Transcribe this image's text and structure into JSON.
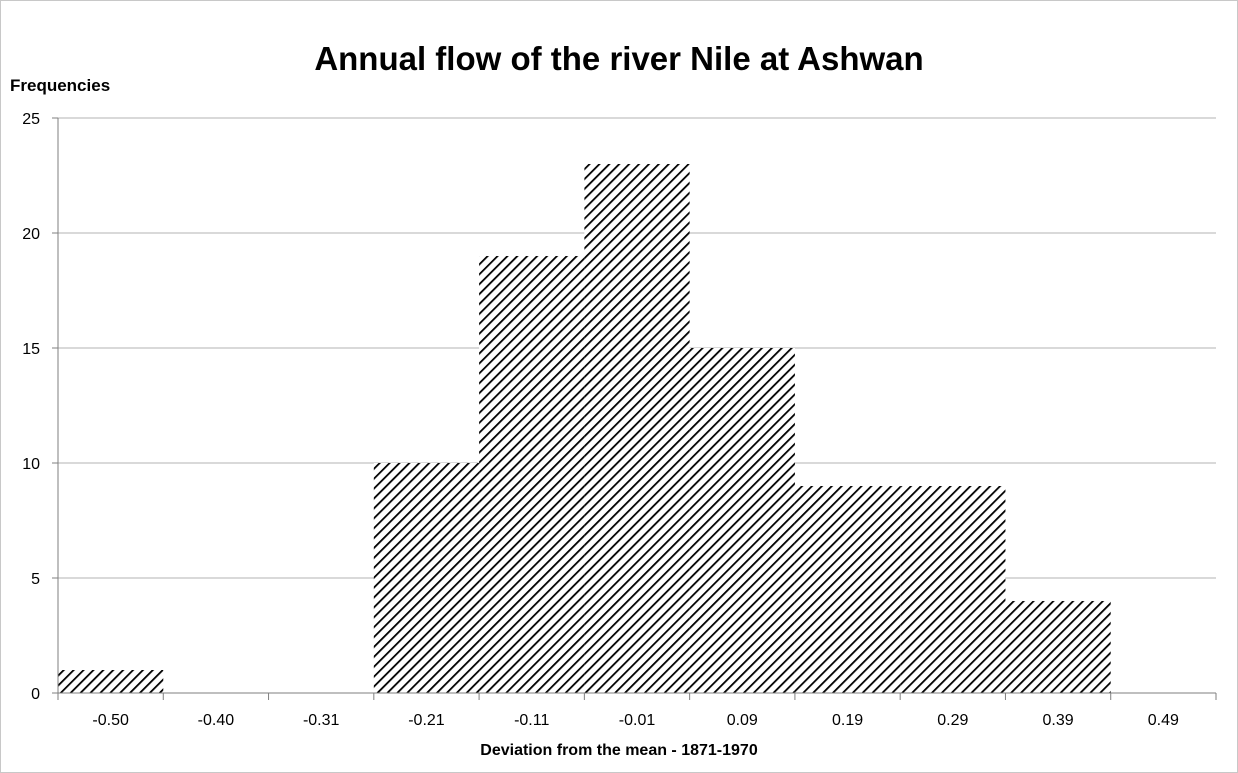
{
  "chart_data": {
    "type": "bar",
    "title": "Annual flow of the river Nile at Ashwan",
    "ylabel": "Frequencies",
    "xlabel": "Deviation from the mean  - 1871-1970",
    "categories": [
      "-0.50",
      "-0.40",
      "-0.31",
      "-0.21",
      "-0.11",
      "-0.01",
      "0.09",
      "0.19",
      "0.29",
      "0.39",
      "0.49"
    ],
    "values": [
      1,
      0,
      0,
      10,
      19,
      23,
      15,
      9,
      9,
      4,
      0
    ],
    "ylim": [
      0,
      25
    ],
    "yticks": [
      0,
      5,
      10,
      15,
      20,
      25
    ],
    "grid": true,
    "bar_pattern": "diagonal-hatch",
    "colors": {
      "bar_stroke": "#000000",
      "grid": "#b3b3b3",
      "axis": "#7f7f7f"
    }
  }
}
